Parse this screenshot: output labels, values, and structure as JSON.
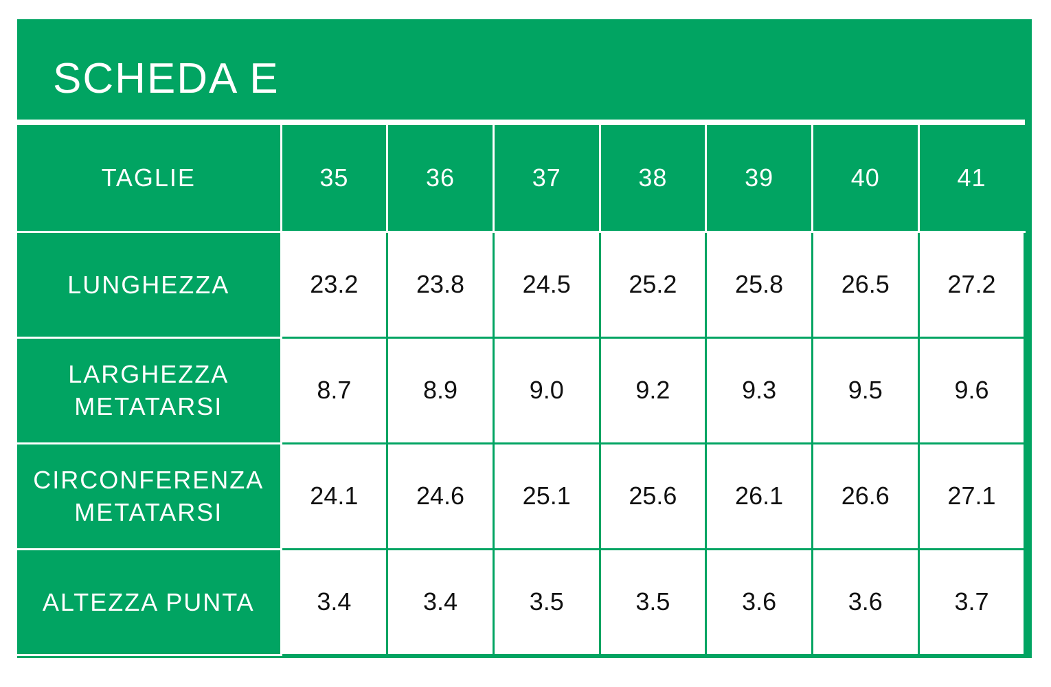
{
  "title": "SCHEDA E",
  "table": {
    "header_label": "TAGLIE",
    "sizes": [
      "35",
      "36",
      "37",
      "38",
      "39",
      "40",
      "41"
    ],
    "rows": [
      {
        "label_lines": [
          "LUNGHEZZA"
        ],
        "values": [
          "23.2",
          "23.8",
          "24.5",
          "25.2",
          "25.8",
          "26.5",
          "27.2"
        ]
      },
      {
        "label_lines": [
          "LARGHEZZA",
          "METATARSI"
        ],
        "values": [
          "8.7",
          "8.9",
          "9.0",
          "9.2",
          "9.3",
          "9.5",
          "9.6"
        ]
      },
      {
        "label_lines": [
          "CIRCONFERENZA",
          "METATARSI"
        ],
        "values": [
          "24.1",
          "24.6",
          "25.1",
          "25.6",
          "26.1",
          "26.6",
          "27.1"
        ]
      },
      {
        "label_lines": [
          "ALTEZZA PUNTA"
        ],
        "values": [
          "3.4",
          "3.4",
          "3.5",
          "3.5",
          "3.6",
          "3.6",
          "3.7"
        ]
      }
    ]
  },
  "colors": {
    "brand_green": "#01a462",
    "cell_background": "#ffffff",
    "value_text": "#111111"
  }
}
